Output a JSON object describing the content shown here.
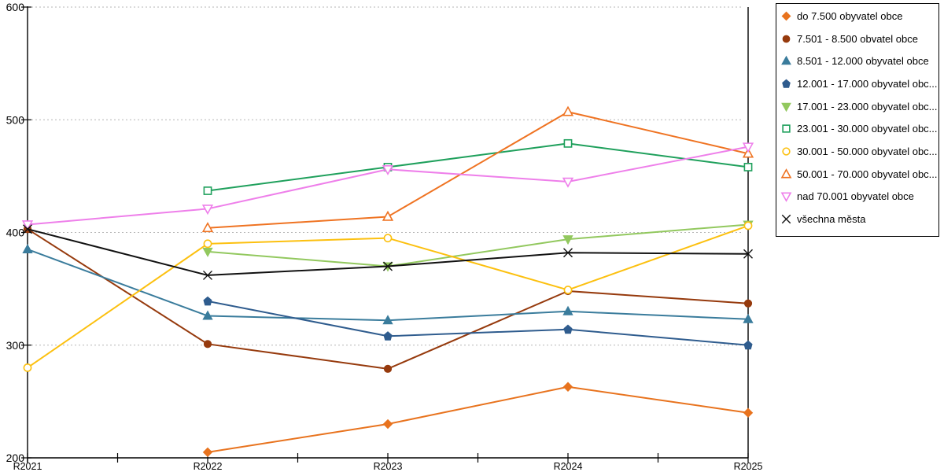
{
  "chart_data": {
    "type": "line",
    "title": "",
    "categories": [
      "R2021",
      "R2022",
      "R2023",
      "R2024",
      "R2025"
    ],
    "y_tick_labels": [
      "200",
      "300",
      "400",
      "500",
      "600"
    ],
    "ylim": [
      200,
      600
    ],
    "ytick_step": 100,
    "grid": "horizontal-dashed",
    "gridline_color": "#b6b6b6",
    "axis_color": "#000000",
    "legend_position": "right",
    "series": [
      {
        "name": "do 7.500 obyvatel obce",
        "color": "#E8731E",
        "marker": "diamond",
        "marker_fill": "filled",
        "values": [
          null,
          205,
          230,
          263,
          240
        ]
      },
      {
        "name": "7.501 - 8.500 obvatel obce",
        "color": "#963A0D",
        "marker": "circle",
        "marker_fill": "filled",
        "values": [
          403,
          301,
          279,
          348,
          337
        ]
      },
      {
        "name": "8.501 - 12.000 obyvatel obce",
        "color": "#3A7C9C",
        "marker": "triangle-up",
        "marker_fill": "filled",
        "values": [
          385,
          326,
          322,
          330,
          323
        ]
      },
      {
        "name": "12.001 - 17.000 obyvatel obc...",
        "color": "#2F5C8E",
        "marker": "pentagon",
        "marker_fill": "filled",
        "values": [
          null,
          339,
          308,
          314,
          300
        ]
      },
      {
        "name": "17.001 - 23.000 obyvatel obc...",
        "color": "#92C85E",
        "marker": "triangle-down",
        "marker_fill": "filled",
        "values": [
          null,
          383,
          370,
          394,
          407
        ]
      },
      {
        "name": "23.001 - 30.000 obyvatel obc...",
        "color": "#1FA05C",
        "marker": "square",
        "marker_fill": "open",
        "values": [
          null,
          437,
          458,
          479,
          458
        ]
      },
      {
        "name": "30.001 - 50.000 obyvatel obc...",
        "color": "#FCC00F",
        "marker": "circle",
        "marker_fill": "open",
        "values": [
          280,
          390,
          395,
          349,
          406
        ]
      },
      {
        "name": "50.001 - 70.000 obyvatel obc...",
        "color": "#EF7322",
        "marker": "triangle-up",
        "marker_fill": "open",
        "values": [
          null,
          404,
          414,
          507,
          470
        ]
      },
      {
        "name": "nad 70.001 obyvatel obce",
        "color": "#EE7FEA",
        "marker": "triangle-down",
        "marker_fill": "open",
        "values": [
          407,
          421,
          456,
          445,
          476
        ]
      },
      {
        "name": "všechna města",
        "color": "#111111",
        "marker": "x",
        "marker_fill": "open",
        "values": [
          403,
          362,
          370,
          382,
          381
        ]
      }
    ]
  }
}
